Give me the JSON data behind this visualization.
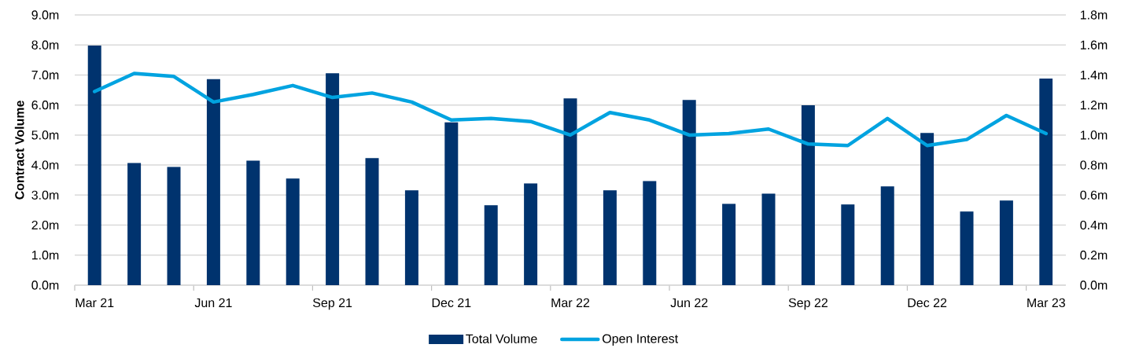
{
  "chart_data": {
    "type": "bar",
    "ylabel": "Contract Volume",
    "categories": [
      "Mar 21",
      null,
      null,
      "Jun 21",
      null,
      null,
      "Sep 21",
      null,
      null,
      "Dec 21",
      null,
      null,
      "Mar 22",
      null,
      null,
      "Jun 22",
      null,
      null,
      "Sep 22",
      null,
      null,
      "Dec 22",
      null,
      null,
      "Mar 23"
    ],
    "series": [
      {
        "name": "Total Volume",
        "color": "#00336e",
        "values": [
          7.98,
          4.07,
          3.94,
          6.86,
          4.15,
          3.55,
          7.06,
          4.23,
          3.16,
          5.42,
          2.66,
          3.39,
          6.22,
          3.16,
          3.47,
          6.17,
          2.71,
          3.05,
          5.99,
          2.69,
          3.29,
          5.07,
          2.45,
          2.82,
          6.88
        ]
      },
      {
        "name": "Open Interest",
        "type": "line",
        "axis": "y2",
        "color": "#00a3e0",
        "values": [
          1.29,
          1.41,
          1.39,
          1.22,
          1.27,
          1.33,
          1.25,
          1.28,
          1.22,
          1.1,
          1.11,
          1.09,
          1.0,
          1.15,
          1.1,
          1.0,
          1.01,
          1.04,
          0.94,
          0.93,
          1.11,
          0.93,
          0.97,
          1.13,
          1.01
        ]
      }
    ],
    "ylim": [
      0,
      9
    ],
    "yticks": [
      {
        "value": 0,
        "label": "0.0m"
      },
      {
        "value": 1,
        "label": "1.0m"
      },
      {
        "value": 2,
        "label": "2.0m"
      },
      {
        "value": 3,
        "label": "3.0m"
      },
      {
        "value": 4,
        "label": "4.0m"
      },
      {
        "value": 5,
        "label": "5.0m"
      },
      {
        "value": 6,
        "label": "6.0m"
      },
      {
        "value": 7,
        "label": "7.0m"
      },
      {
        "value": 8,
        "label": "8.0m"
      },
      {
        "value": 9,
        "label": "9.0m"
      }
    ],
    "y2lim": [
      0,
      1.8
    ],
    "y2ticks": [
      {
        "value": 0,
        "label": "0.0m"
      },
      {
        "value": 0.2,
        "label": "0.2m"
      },
      {
        "value": 0.4,
        "label": "0.4m"
      },
      {
        "value": 0.6,
        "label": "0.6m"
      },
      {
        "value": 0.8,
        "label": "0.8m"
      },
      {
        "value": 1.0,
        "label": "1.0m"
      },
      {
        "value": 1.2,
        "label": "1.2m"
      },
      {
        "value": 1.4,
        "label": "1.4m"
      },
      {
        "value": 1.6,
        "label": "1.6m"
      },
      {
        "value": 1.8,
        "label": "1.8m"
      }
    ],
    "grid": "y",
    "legend": "bottom"
  }
}
